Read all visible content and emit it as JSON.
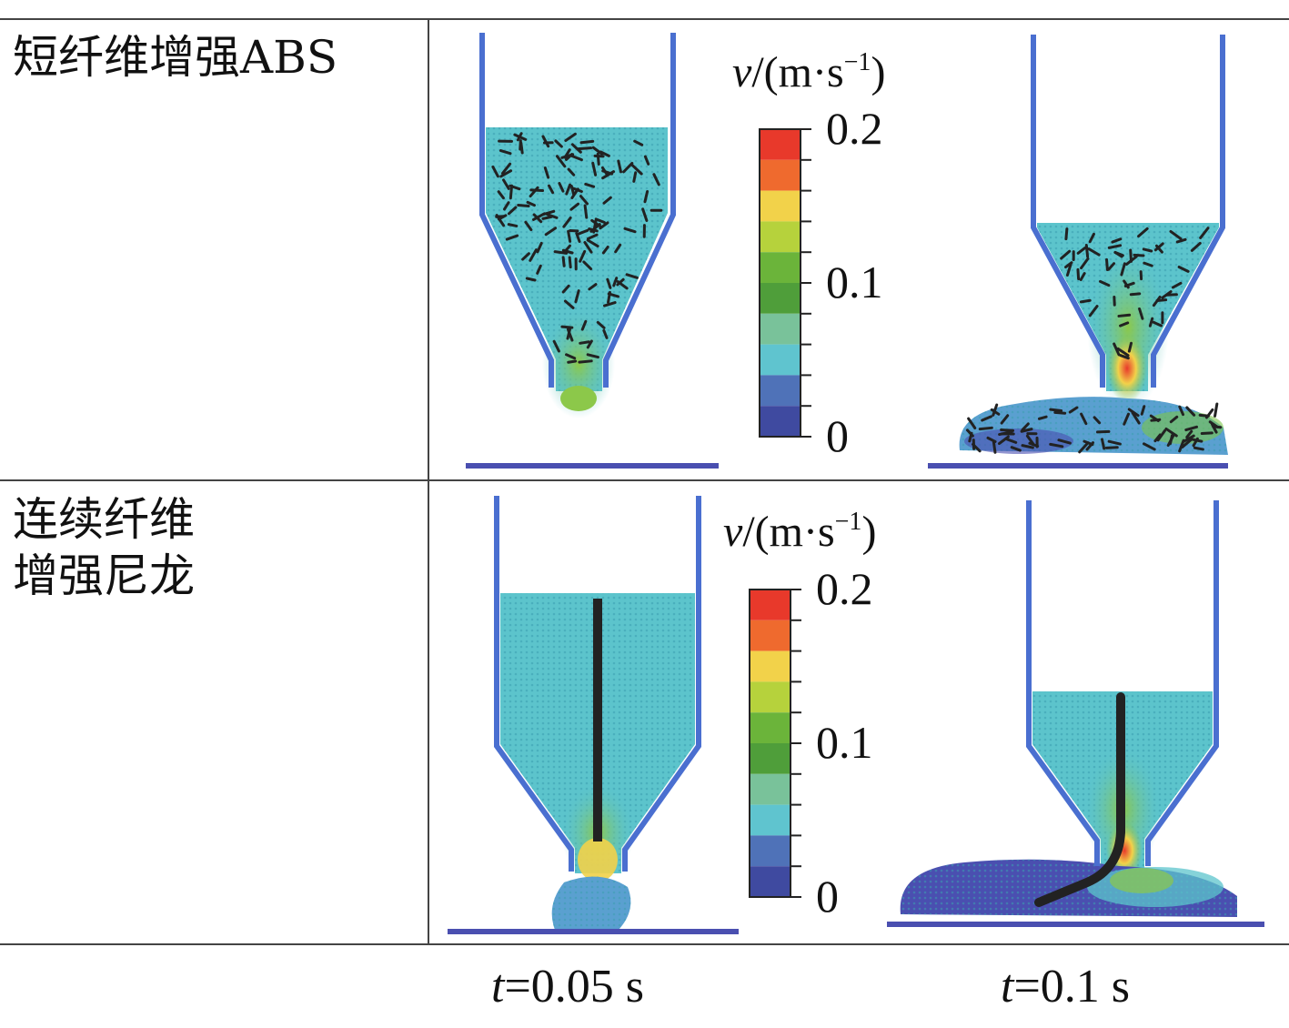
{
  "rows": [
    {
      "label_lines": [
        "短纤维增强ABS"
      ]
    },
    {
      "label_lines": [
        "连续纤维",
        "增强尼龙"
      ]
    }
  ],
  "columns": [
    {
      "time_var": "t",
      "time_rest": "=0.05 s"
    },
    {
      "time_var": "t",
      "time_rest": "=0.1 s"
    }
  ],
  "colorbar": {
    "title_var": "v",
    "title_rest": "/(m·s",
    "title_sup": "−1",
    "title_close": ")",
    "tick_labels": [
      "0.2",
      "0.1",
      "0"
    ],
    "colors": [
      "#e8392b",
      "#ef6a2e",
      "#f2d24a",
      "#b6d23c",
      "#6bb43a",
      "#4f9e3a",
      "#79c29a",
      "#5fc4cf",
      "#4f72b8",
      "#3f4aa0"
    ]
  },
  "palette": {
    "wall": "#4a6fd0",
    "fluid_slow": "#5cc4cc",
    "fluid_fast": "#e23d2a",
    "fiber": "#222222",
    "floor": "#4a4fb0"
  }
}
